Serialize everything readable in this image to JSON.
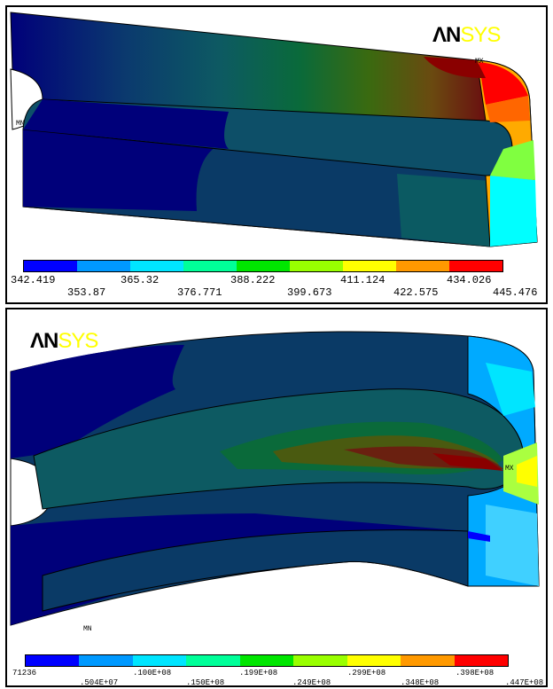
{
  "logo": {
    "part1": "ΛN",
    "part2": "SYS"
  },
  "top_panel": {
    "mx_label": "MX",
    "mn_label": "MN",
    "legend": {
      "row1": [
        "342.419",
        "365.32",
        "388.222",
        "411.124",
        "434.026"
      ],
      "row2": [
        "353.87",
        "376.771",
        "399.673",
        "422.575",
        "445.476"
      ]
    }
  },
  "bottom_panel": {
    "mx_label": "MX",
    "mn_label": "MN",
    "legend": {
      "row1": [
        "71236",
        ".100E+08",
        ".199E+08",
        ".299E+08",
        ".398E+08"
      ],
      "row2": [
        ".504E+07",
        ".150E+08",
        ".249E+08",
        ".348E+08",
        ".447E+08"
      ]
    }
  },
  "contour_colors": [
    "#0000ff",
    "#0099ff",
    "#00e5ff",
    "#00ff99",
    "#00e600",
    "#99ff00",
    "#ffff00",
    "#ff9900",
    "#ff0000"
  ]
}
